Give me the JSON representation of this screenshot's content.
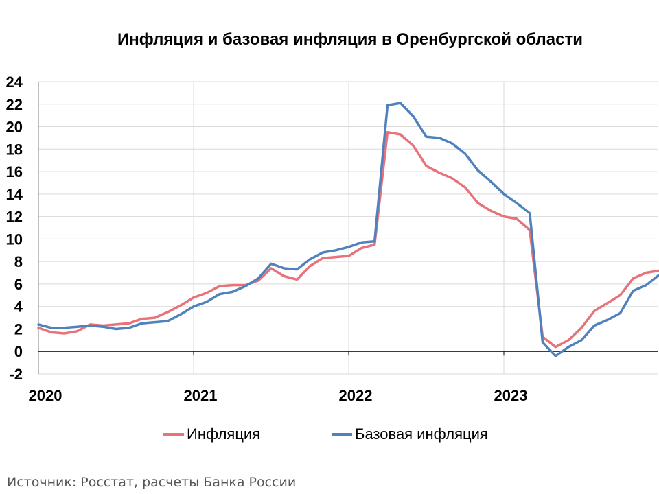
{
  "chart_data": {
    "type": "line",
    "title": "Инфляция и базовая инфляция в Оренбургской области",
    "xlabel": "",
    "ylabel": "",
    "x_ticks": [
      "2020",
      "2021",
      "2022",
      "2023"
    ],
    "y_ticks": [
      24,
      22,
      20,
      18,
      16,
      14,
      12,
      10,
      8,
      6,
      4,
      2,
      0,
      -2
    ],
    "ylim": [
      -2,
      24
    ],
    "x_start": "2020-01",
    "x_end": "2023-12",
    "grid": true,
    "legend_position": "bottom",
    "series": [
      {
        "name": "Инфляция",
        "color": "#e8727a",
        "values": [
          2.1,
          1.7,
          1.6,
          1.8,
          2.4,
          2.3,
          2.4,
          2.5,
          2.9,
          3.0,
          3.5,
          4.1,
          4.8,
          5.2,
          5.8,
          5.9,
          5.9,
          6.3,
          7.4,
          6.7,
          6.4,
          7.6,
          8.3,
          8.4,
          8.5,
          9.2,
          9.5,
          19.5,
          19.3,
          18.3,
          16.5,
          15.9,
          15.4,
          14.6,
          13.2,
          12.5,
          12.0,
          11.8,
          10.8,
          1.3,
          0.4,
          1.0,
          2.1,
          3.6,
          4.3,
          5.0,
          6.5,
          7.0,
          7.2
        ]
      },
      {
        "name": "Базовая инфляция",
        "color": "#4f81bd",
        "values": [
          2.4,
          2.1,
          2.1,
          2.2,
          2.3,
          2.2,
          2.0,
          2.1,
          2.5,
          2.6,
          2.7,
          3.3,
          4.0,
          4.4,
          5.1,
          5.3,
          5.8,
          6.5,
          7.8,
          7.4,
          7.3,
          8.2,
          8.8,
          9.0,
          9.3,
          9.7,
          9.8,
          21.9,
          22.1,
          20.9,
          19.1,
          19.0,
          18.5,
          17.6,
          16.1,
          15.1,
          14.0,
          13.2,
          12.3,
          0.8,
          -0.4,
          0.4,
          1.0,
          2.3,
          2.8,
          3.4,
          5.4,
          5.9,
          6.8
        ]
      }
    ]
  },
  "legend": {
    "items": [
      "Инфляция",
      "Базовая инфляция"
    ]
  },
  "source": "Источник: Росстат, расчеты Банка России"
}
